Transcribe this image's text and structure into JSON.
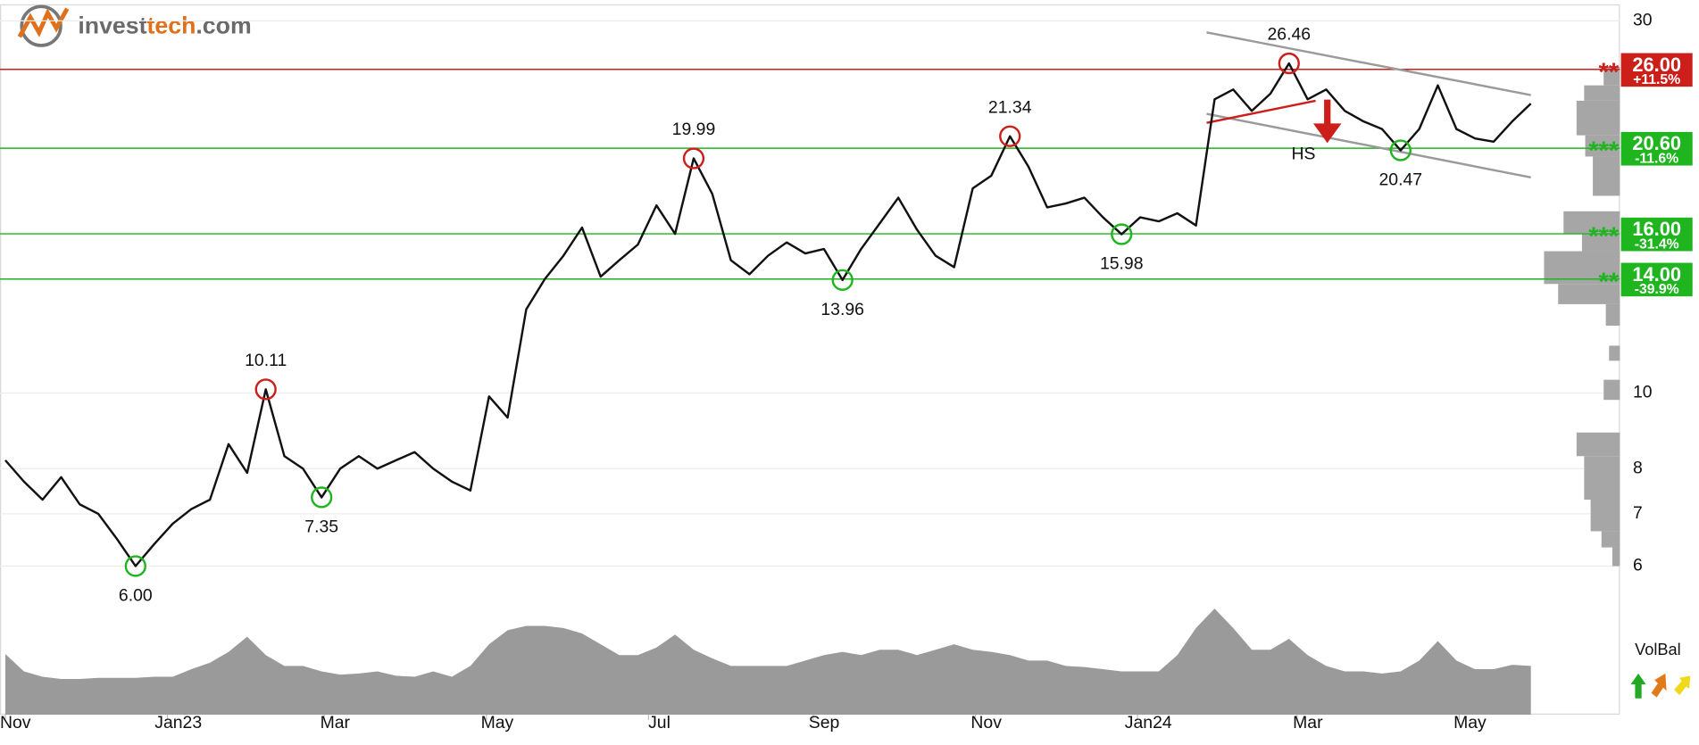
{
  "brand": [
    "invest",
    "tech",
    ".com"
  ],
  "chart_data": {
    "type": "line",
    "log_scale": true,
    "grid": true,
    "color": "#111111",
    "xlim": [
      -2,
      607.5
    ],
    "ylim": [
      5.5,
      31.4
    ],
    "yticks": [
      6,
      7,
      8,
      10,
      30
    ],
    "xticks": [
      {
        "value": 0,
        "label": "Nov"
      },
      {
        "value": 61,
        "label": "Jan23"
      },
      {
        "value": 120,
        "label": "Mar"
      },
      {
        "value": 181,
        "label": "May"
      },
      {
        "value": 242,
        "label": "Jul"
      },
      {
        "value": 304,
        "label": "Sep"
      },
      {
        "value": 365,
        "label": "Nov"
      },
      {
        "value": 426,
        "label": "Jan24"
      },
      {
        "value": 486,
        "label": "Mar"
      },
      {
        "value": 547,
        "label": "May"
      }
    ],
    "x": [
      0,
      7,
      14,
      21,
      28,
      35,
      42,
      49,
      56,
      63,
      70,
      77,
      84,
      91,
      98,
      105,
      112,
      119,
      126,
      133,
      140,
      147,
      154,
      161,
      168,
      175,
      182,
      189,
      196,
      203,
      210,
      217,
      224,
      231,
      238,
      245,
      252,
      259,
      266,
      273,
      280,
      287,
      294,
      301,
      308,
      315,
      322,
      329,
      336,
      343,
      350,
      357,
      364,
      371,
      378,
      385,
      392,
      399,
      406,
      413,
      420,
      427,
      434,
      441,
      448,
      455,
      462,
      469,
      476,
      483,
      490,
      497,
      504,
      511,
      518,
      525,
      532,
      539,
      546,
      553,
      560,
      567,
      574
    ],
    "values": [
      8.2,
      7.7,
      7.3,
      7.8,
      7.2,
      7.0,
      6.5,
      6.0,
      6.4,
      6.8,
      7.1,
      7.3,
      8.6,
      7.9,
      10.11,
      8.3,
      8.0,
      7.35,
      8.0,
      8.3,
      8.0,
      8.2,
      8.4,
      8.0,
      7.7,
      7.5,
      9.9,
      9.3,
      12.8,
      14.0,
      15.0,
      16.3,
      14.1,
      14.8,
      15.5,
      17.4,
      16.0,
      19.99,
      18.0,
      14.8,
      14.2,
      15.0,
      15.6,
      15.1,
      15.3,
      13.96,
      15.3,
      16.5,
      17.8,
      16.2,
      15.0,
      14.5,
      18.3,
      19.0,
      21.34,
      19.5,
      17.3,
      17.5,
      17.8,
      16.8,
      15.98,
      16.8,
      16.6,
      17.0,
      16.4,
      23.8,
      24.5,
      23.0,
      24.2,
      26.46,
      23.8,
      24.5,
      23.0,
      22.3,
      21.8,
      20.47,
      21.8,
      24.8,
      21.8,
      21.2,
      21.0,
      22.3,
      23.5
    ],
    "volume": {
      "color": "#9a9a9a",
      "values": [
        56,
        40,
        35,
        33,
        33,
        34,
        34,
        34,
        35,
        35,
        42,
        48,
        58,
        72,
        55,
        45,
        45,
        40,
        37,
        38,
        40,
        36,
        35,
        40,
        35,
        45,
        65,
        78,
        82,
        82,
        80,
        75,
        65,
        55,
        55,
        62,
        74,
        60,
        52,
        45,
        45,
        45,
        45,
        50,
        55,
        58,
        55,
        60,
        60,
        55,
        60,
        65,
        60,
        58,
        55,
        50,
        50,
        45,
        44,
        42,
        40,
        40,
        40,
        55,
        80,
        98,
        80,
        60,
        60,
        70,
        55,
        45,
        40,
        40,
        38,
        40,
        50,
        68,
        50,
        42,
        42,
        46,
        45
      ]
    },
    "volume_label": "VolBal",
    "volume_profile": {
      "color": "#a6a6a6",
      "bins": [
        6.0,
        6.34,
        6.65,
        7.3,
        8.3,
        8.9,
        9.8,
        10.4,
        11.0,
        11.5,
        12.2,
        13.0,
        13.8,
        15.2,
        16.0,
        17.1,
        17.9,
        20.1,
        21.4,
        23.7,
        24.8,
        26.2
      ],
      "counts": [
        7,
        17,
        27,
        33,
        40,
        0,
        15,
        0,
        10,
        0,
        13,
        57,
        70,
        35,
        52,
        0,
        25,
        32,
        40,
        33,
        15
      ]
    },
    "annotations": [
      {
        "type": "low",
        "x": 49,
        "value": 6.0,
        "label": "6.00"
      },
      {
        "type": "high",
        "x": 98,
        "value": 10.11,
        "label": "10.11"
      },
      {
        "type": "low",
        "x": 119,
        "value": 7.35,
        "label": "7.35"
      },
      {
        "type": "high",
        "x": 259,
        "value": 19.99,
        "label": "19.99"
      },
      {
        "type": "low",
        "x": 315,
        "value": 13.96,
        "label": "13.96"
      },
      {
        "type": "high",
        "x": 378,
        "value": 21.34,
        "label": "21.34"
      },
      {
        "type": "low",
        "x": 420,
        "value": 15.98,
        "label": "15.98"
      },
      {
        "type": "high",
        "x": 483,
        "value": 26.46,
        "label": "26.46"
      },
      {
        "type": "low",
        "x": 525,
        "value": 20.47,
        "label": "20.47"
      }
    ],
    "levels": [
      {
        "value": 26,
        "label": "26.00",
        "change": "+11.5%",
        "stars": "**",
        "color": "#cc1f1a"
      },
      {
        "value": 20.6,
        "label": "20.60",
        "change": "-11.6%",
        "stars": "***",
        "color": "#1fb51f"
      },
      {
        "value": 16,
        "label": "16.00",
        "change": "-31.4%",
        "stars": "***",
        "color": "#1fb51f"
      },
      {
        "value": 14,
        "label": "14.00",
        "change": "-39.9%",
        "stars": "**",
        "color": "#1fb51f"
      }
    ],
    "trend_lines": [
      {
        "x": [
          452,
          574
        ],
        "values": [
          29.0,
          24.1
        ],
        "color": "#9a9a9a"
      },
      {
        "x": [
          452,
          574
        ],
        "values": [
          22.8,
          18.9
        ],
        "color": "#9a9a9a"
      },
      {
        "x": [
          452,
          493
        ],
        "values": [
          22.2,
          23.7
        ],
        "color": "#cc1f1a"
      }
    ],
    "pattern_label": "HS"
  }
}
